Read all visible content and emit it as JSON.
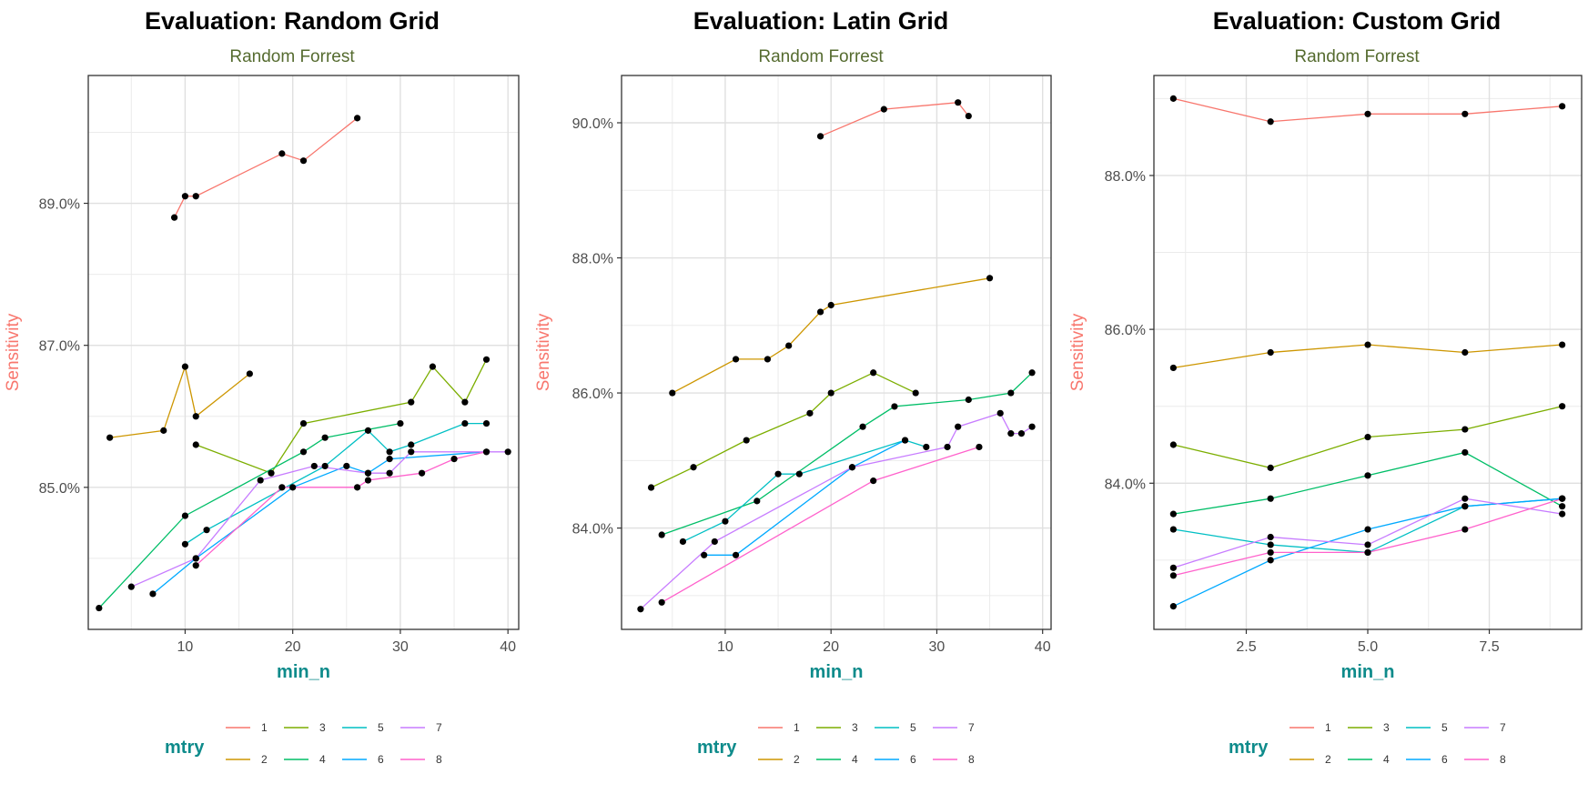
{
  "colors": {
    "mtry": [
      "#F8766D",
      "#CD9600",
      "#7CAE00",
      "#00BE67",
      "#00BFC4",
      "#00A9FF",
      "#C77CFF",
      "#FF61CC"
    ],
    "point": "#000000",
    "grid": "#ebebeb",
    "panel_border": "#333333",
    "title": "#000000",
    "subtitle": "#556b2f",
    "ylabel": "#f8766d",
    "xlabel": "#0e8b8b",
    "legend_title": "#0e8b8b"
  },
  "chart_data": [
    {
      "type": "line",
      "title": "Evaluation: Random Grid",
      "subtitle": "Random Forrest",
      "xlabel": "min_n",
      "ylabel": "Sensitivity",
      "xlim": [
        1,
        41
      ],
      "ylim": [
        83.0,
        90.8
      ],
      "xticks": [
        10,
        20,
        30,
        40
      ],
      "xtick_labels": [
        "10",
        "20",
        "30",
        "40"
      ],
      "yticks": [
        85.0,
        87.0,
        89.0
      ],
      "ytick_labels": [
        "85.0%",
        "87.0%",
        "89.0%"
      ],
      "grid": true,
      "legend": {
        "title": "mtry",
        "position": "bottom",
        "labels": [
          "1",
          "2",
          "3",
          "4",
          "5",
          "6",
          "7",
          "8"
        ]
      },
      "series": [
        {
          "name": "1",
          "x": [
            9,
            10,
            11,
            19,
            21,
            26
          ],
          "y": [
            88.8,
            89.1,
            89.1,
            89.7,
            89.6,
            90.2
          ]
        },
        {
          "name": "2",
          "x": [
            3,
            8,
            10,
            11,
            16
          ],
          "y": [
            85.7,
            85.8,
            86.7,
            86.0,
            86.6
          ]
        },
        {
          "name": "3",
          "x": [
            11,
            18,
            21,
            31,
            33,
            36,
            38
          ],
          "y": [
            85.6,
            85.2,
            85.9,
            86.2,
            86.7,
            86.2,
            86.8
          ]
        },
        {
          "name": "4",
          "x": [
            2,
            10,
            21,
            23,
            30
          ],
          "y": [
            83.3,
            84.6,
            85.5,
            85.7,
            85.9
          ]
        },
        {
          "name": "5",
          "x": [
            10,
            12,
            23,
            27,
            29,
            31,
            36,
            38
          ],
          "y": [
            84.2,
            84.4,
            85.3,
            85.8,
            85.5,
            85.6,
            85.9,
            85.9
          ]
        },
        {
          "name": "6",
          "x": [
            7,
            11,
            20,
            25,
            27,
            29,
            38
          ],
          "y": [
            83.5,
            84.0,
            85.0,
            85.3,
            85.2,
            85.4,
            85.5
          ]
        },
        {
          "name": "7",
          "x": [
            5,
            11,
            17,
            22,
            27,
            29,
            31,
            40
          ],
          "y": [
            83.6,
            84.0,
            85.1,
            85.3,
            85.2,
            85.2,
            85.5,
            85.5
          ]
        },
        {
          "name": "8",
          "x": [
            11,
            19,
            26,
            27,
            32,
            35,
            38
          ],
          "y": [
            83.9,
            85.0,
            85.0,
            85.1,
            85.2,
            85.4,
            85.5
          ]
        }
      ]
    },
    {
      "type": "line",
      "title": "Evaluation: Latin Grid",
      "subtitle": "Random Forrest",
      "xlabel": "min_n",
      "ylabel": "Sensitivity",
      "xlim": [
        0.2,
        40.8
      ],
      "ylim": [
        82.5,
        90.7
      ],
      "xticks": [
        10,
        20,
        30,
        40
      ],
      "xtick_labels": [
        "10",
        "20",
        "30",
        "40"
      ],
      "yticks": [
        84.0,
        86.0,
        88.0,
        90.0
      ],
      "ytick_labels": [
        "84.0%",
        "86.0%",
        "88.0%",
        "90.0%"
      ],
      "grid": true,
      "legend": {
        "title": "mtry",
        "position": "bottom",
        "labels": [
          "1",
          "2",
          "3",
          "4",
          "5",
          "6",
          "7",
          "8"
        ]
      },
      "series": [
        {
          "name": "1",
          "x": [
            19,
            25,
            32,
            33
          ],
          "y": [
            89.8,
            90.2,
            90.3,
            90.1
          ]
        },
        {
          "name": "2",
          "x": [
            5,
            11,
            14,
            16,
            19,
            20,
            35
          ],
          "y": [
            86.0,
            86.5,
            86.5,
            86.7,
            87.2,
            87.3,
            87.7
          ]
        },
        {
          "name": "3",
          "x": [
            3,
            7,
            12,
            18,
            20,
            24,
            28
          ],
          "y": [
            84.6,
            84.9,
            85.3,
            85.7,
            86.0,
            86.3,
            86.0
          ]
        },
        {
          "name": "4",
          "x": [
            4,
            13,
            23,
            26,
            33,
            37,
            39
          ],
          "y": [
            83.9,
            84.4,
            85.5,
            85.8,
            85.9,
            86.0,
            86.3
          ]
        },
        {
          "name": "5",
          "x": [
            6,
            10,
            15,
            17,
            27,
            29
          ],
          "y": [
            83.8,
            84.1,
            84.8,
            84.8,
            85.3,
            85.2
          ]
        },
        {
          "name": "6",
          "x": [
            8,
            11,
            22,
            27
          ],
          "y": [
            83.6,
            83.6,
            84.9,
            85.3
          ]
        },
        {
          "name": "7",
          "x": [
            2,
            9,
            22,
            31,
            32,
            36,
            37,
            38,
            39
          ],
          "y": [
            82.8,
            83.8,
            84.9,
            85.2,
            85.5,
            85.7,
            85.4,
            85.4,
            85.5
          ]
        },
        {
          "name": "8",
          "x": [
            4,
            24,
            34
          ],
          "y": [
            82.9,
            84.7,
            85.2
          ]
        }
      ]
    },
    {
      "type": "line",
      "title": "Evaluation: Custom Grid",
      "subtitle": "Random Forrest",
      "xlabel": "min_n",
      "ylabel": "Sensitivity",
      "xlim": [
        0.6,
        9.4
      ],
      "ylim": [
        82.1,
        89.3
      ],
      "xticks": [
        2.5,
        5.0,
        7.5
      ],
      "xtick_labels": [
        "2.5",
        "5.0",
        "7.5"
      ],
      "yticks": [
        84.0,
        86.0,
        88.0
      ],
      "ytick_labels": [
        "84.0%",
        "86.0%",
        "88.0%"
      ],
      "grid": true,
      "legend": {
        "title": "mtry",
        "position": "bottom",
        "labels": [
          "1",
          "2",
          "3",
          "4",
          "5",
          "6",
          "7",
          "8"
        ]
      },
      "series": [
        {
          "name": "1",
          "x": [
            1,
            3,
            5,
            7,
            9
          ],
          "y": [
            89.0,
            88.7,
            88.8,
            88.8,
            88.9
          ]
        },
        {
          "name": "2",
          "x": [
            1,
            3,
            5,
            7,
            9
          ],
          "y": [
            85.5,
            85.7,
            85.8,
            85.7,
            85.8
          ]
        },
        {
          "name": "3",
          "x": [
            1,
            3,
            5,
            7,
            9
          ],
          "y": [
            84.5,
            84.2,
            84.6,
            84.7,
            85.0
          ]
        },
        {
          "name": "4",
          "x": [
            1,
            3,
            5,
            7,
            9
          ],
          "y": [
            83.6,
            83.8,
            84.1,
            84.4,
            83.7
          ]
        },
        {
          "name": "5",
          "x": [
            1,
            3,
            5,
            7,
            9
          ],
          "y": [
            83.4,
            83.2,
            83.1,
            83.7,
            83.8
          ]
        },
        {
          "name": "6",
          "x": [
            1,
            3,
            5,
            7,
            9
          ],
          "y": [
            82.4,
            83.0,
            83.4,
            83.7,
            83.8
          ]
        },
        {
          "name": "7",
          "x": [
            1,
            3,
            5,
            7,
            9
          ],
          "y": [
            82.9,
            83.3,
            83.2,
            83.8,
            83.6
          ]
        },
        {
          "name": "8",
          "x": [
            1,
            3,
            5,
            7,
            9
          ],
          "y": [
            82.8,
            83.1,
            83.1,
            83.4,
            83.8
          ]
        }
      ]
    }
  ]
}
